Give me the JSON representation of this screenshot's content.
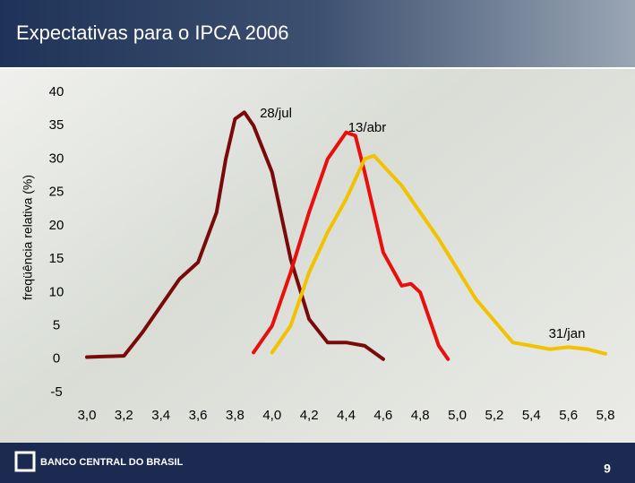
{
  "chart_data": {
    "type": "line",
    "title": "Expectativas para o IPCA 2006",
    "y_label": "freqüência relativa (%)",
    "xlim": [
      3.0,
      5.8
    ],
    "xticks": [
      {
        "value": 3.0,
        "label": "3,0"
      },
      {
        "value": 3.2,
        "label": "3,2"
      },
      {
        "value": 3.4,
        "label": "3,4"
      },
      {
        "value": 3.6,
        "label": "3,6"
      },
      {
        "value": 3.8,
        "label": "3,8"
      },
      {
        "value": 4.0,
        "label": "4,0"
      },
      {
        "value": 4.2,
        "label": "4,2"
      },
      {
        "value": 4.4,
        "label": "4,4"
      },
      {
        "value": 4.6,
        "label": "4,6"
      },
      {
        "value": 4.8,
        "label": "4,8"
      },
      {
        "value": 5.0,
        "label": "5,0"
      },
      {
        "value": 5.2,
        "label": "5,2"
      },
      {
        "value": 5.4,
        "label": "5,4"
      },
      {
        "value": 5.6,
        "label": "5,6"
      },
      {
        "value": 5.8,
        "label": "5,8"
      }
    ],
    "ylim": [
      -5,
      40
    ],
    "yticks": [
      -5,
      0,
      5,
      10,
      15,
      20,
      25,
      30,
      35,
      40
    ],
    "grid": false,
    "series": [
      {
        "name": "28/jul",
        "color": "#7a0a0a",
        "x": [
          3.0,
          3.1,
          3.2,
          3.3,
          3.4,
          3.5,
          3.6,
          3.7,
          3.75,
          3.8,
          3.85,
          3.9,
          4.0,
          4.1,
          4.2,
          4.3,
          4.4,
          4.5,
          4.6
        ],
        "values": [
          0.3,
          0.4,
          0.5,
          4,
          8,
          12,
          14.5,
          22,
          30,
          36,
          37,
          35,
          28,
          15,
          6,
          2.5,
          2.5,
          2,
          0
        ]
      },
      {
        "name": "13/abr",
        "color": "#e8100c",
        "x": [
          3.9,
          4.0,
          4.1,
          4.2,
          4.3,
          4.4,
          4.45,
          4.5,
          4.6,
          4.7,
          4.75,
          4.8,
          4.9,
          4.95
        ],
        "values": [
          1,
          5,
          13,
          22,
          30,
          34,
          33.5,
          28,
          16,
          11,
          11.3,
          10,
          2,
          0
        ]
      },
      {
        "name": "31/jan",
        "color": "#f2c200",
        "x": [
          4.0,
          4.1,
          4.2,
          4.3,
          4.4,
          4.5,
          4.55,
          4.7,
          4.9,
          5.1,
          5.3,
          5.5,
          5.6,
          5.7,
          5.8
        ],
        "values": [
          1,
          5,
          13,
          19,
          24,
          30,
          30.5,
          26,
          18,
          9,
          2.5,
          1.5,
          1.8,
          1.5,
          0.8
        ]
      }
    ]
  },
  "footer": {
    "brand": "BANCO CENTRAL DO BRASIL",
    "page": "9"
  }
}
